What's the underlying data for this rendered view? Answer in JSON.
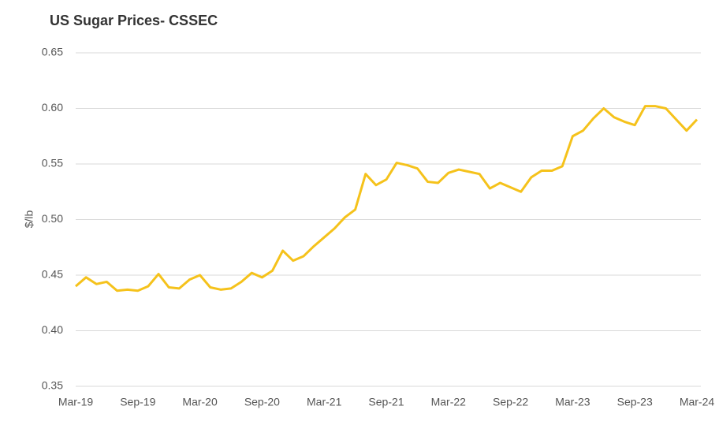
{
  "chart_data": {
    "type": "line",
    "title": "US Sugar Prices- CSSEC",
    "y_label": "$/lb",
    "categories": [
      "Mar-19",
      null,
      null,
      null,
      null,
      null,
      "Sep-19",
      null,
      null,
      null,
      null,
      null,
      "Mar-20",
      null,
      null,
      null,
      null,
      null,
      "Sep-20",
      null,
      null,
      null,
      null,
      null,
      "Mar-21",
      null,
      null,
      null,
      null,
      null,
      "Sep-21",
      null,
      null,
      null,
      null,
      null,
      "Mar-22",
      null,
      null,
      null,
      null,
      null,
      "Sep-22",
      null,
      null,
      null,
      null,
      null,
      "Mar-23",
      null,
      null,
      null,
      null,
      null,
      "Sep-23",
      null,
      null,
      null,
      null,
      null,
      "Mar-24"
    ],
    "series": [
      {
        "name": "CSSEC",
        "color": "#f5c21b",
        "values": [
          0.44,
          0.448,
          0.442,
          0.444,
          0.436,
          0.437,
          0.436,
          0.44,
          0.451,
          0.439,
          0.438,
          0.446,
          0.45,
          0.439,
          0.437,
          0.438,
          0.444,
          0.452,
          0.448,
          0.454,
          0.472,
          0.463,
          0.467,
          0.476,
          0.484,
          0.492,
          0.502,
          0.509,
          0.541,
          0.531,
          0.536,
          0.551,
          0.549,
          0.546,
          0.534,
          0.533,
          0.542,
          0.545,
          0.543,
          0.541,
          0.528,
          0.533,
          0.529,
          0.525,
          0.538,
          0.544,
          0.544,
          0.548,
          0.575,
          0.58,
          0.591,
          0.6,
          0.592,
          0.588,
          0.585,
          0.602,
          0.602,
          0.6,
          0.59,
          0.58,
          0.59
        ]
      }
    ],
    "ylim": [
      0.35,
      0.65
    ],
    "yticks": [
      0.35,
      {
        "value": 0.4,
        "label": "0.40"
      },
      0.45,
      {
        "value": 0.5,
        "label": "0.50"
      },
      0.55,
      {
        "value": 0.6,
        "label": "0.60"
      },
      0.65
    ],
    "grid": true
  }
}
